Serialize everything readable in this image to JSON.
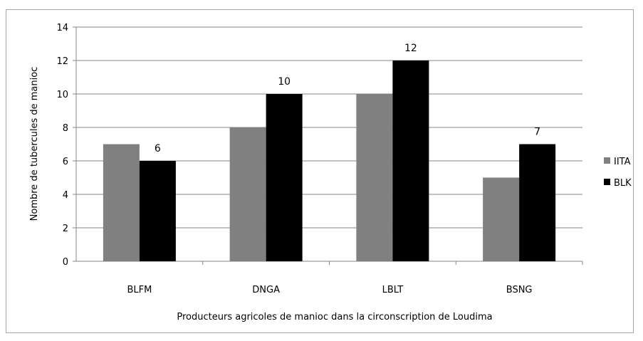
{
  "chart_data": {
    "type": "bar",
    "title": "",
    "xlabel": "Producteurs agricoles de manioc dans la circonscription de Loudima",
    "ylabel": "Nombre de tubercules de manioc",
    "categories": [
      "BLFM",
      "DNGA",
      "LBLT",
      "BSNG"
    ],
    "series": [
      {
        "name": "IITA",
        "values": [
          7,
          8,
          10,
          5
        ],
        "color": "#808080",
        "data_labels": false
      },
      {
        "name": "BLK",
        "values": [
          6,
          10,
          12,
          7
        ],
        "color": "#000000",
        "data_labels": true
      }
    ],
    "ylim": [
      0,
      14
    ],
    "yticks": [
      0,
      2,
      4,
      6,
      8,
      10,
      12,
      14
    ],
    "grid": true,
    "legend_position": "right"
  }
}
